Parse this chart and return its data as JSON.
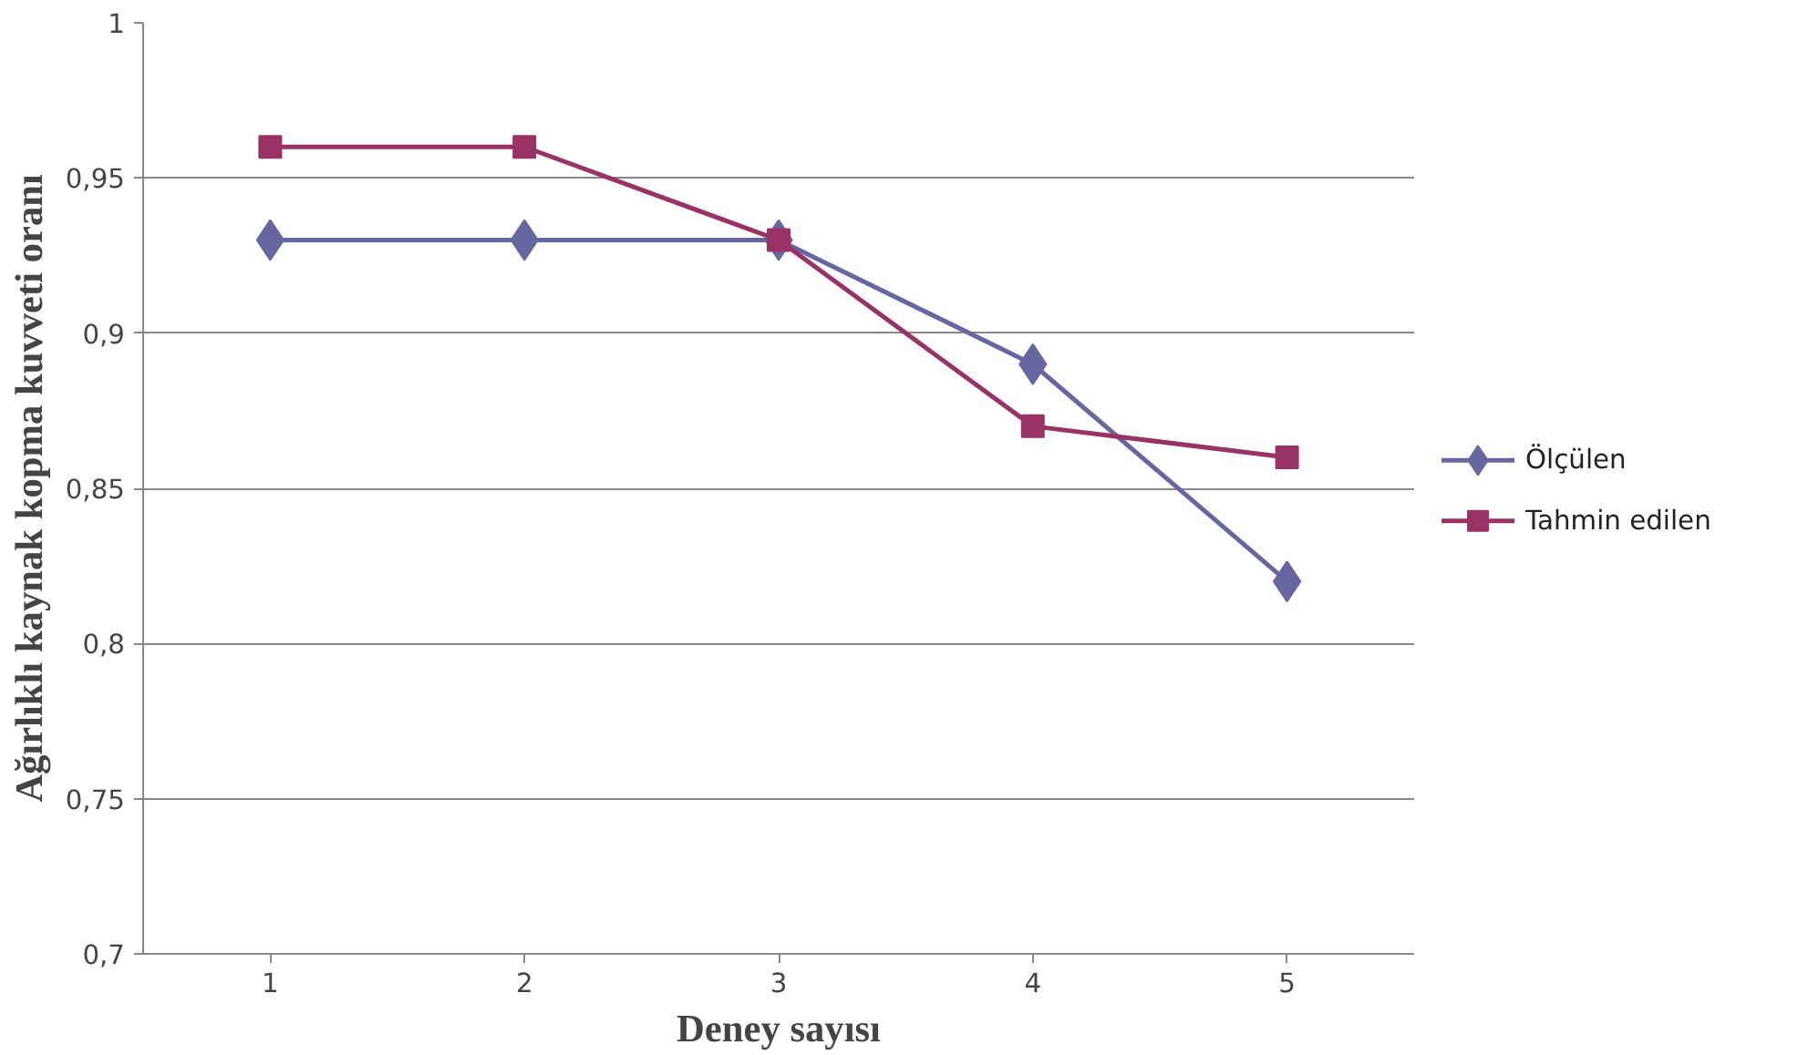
{
  "chart_data": {
    "type": "line",
    "xlabel": "Deney sayısı",
    "ylabel": "Ağırlıklı kaynak kopma kuvveti oranı",
    "categories": [
      "1",
      "2",
      "3",
      "4",
      "5"
    ],
    "series": [
      {
        "name": "Ölçülen",
        "color": "#6666a0",
        "marker": "diamond",
        "values": [
          0.93,
          0.93,
          0.93,
          0.89,
          0.82
        ]
      },
      {
        "name": "Tahmin edilen",
        "color": "#993366",
        "marker": "square",
        "values": [
          0.96,
          0.96,
          0.93,
          0.87,
          0.86
        ]
      }
    ],
    "ylim": [
      0.7,
      1
    ],
    "yticks": [
      {
        "value": 0.7,
        "label": "0,7"
      },
      {
        "value": 0.75,
        "label": "0,75"
      },
      {
        "value": 0.8,
        "label": "0,8"
      },
      {
        "value": 0.85,
        "label": "0,85"
      },
      {
        "value": 0.9,
        "label": "0,9"
      },
      {
        "value": 0.95,
        "label": "0,95"
      },
      1
    ],
    "grid": "y",
    "legend": "right",
    "line_style": "solid"
  }
}
